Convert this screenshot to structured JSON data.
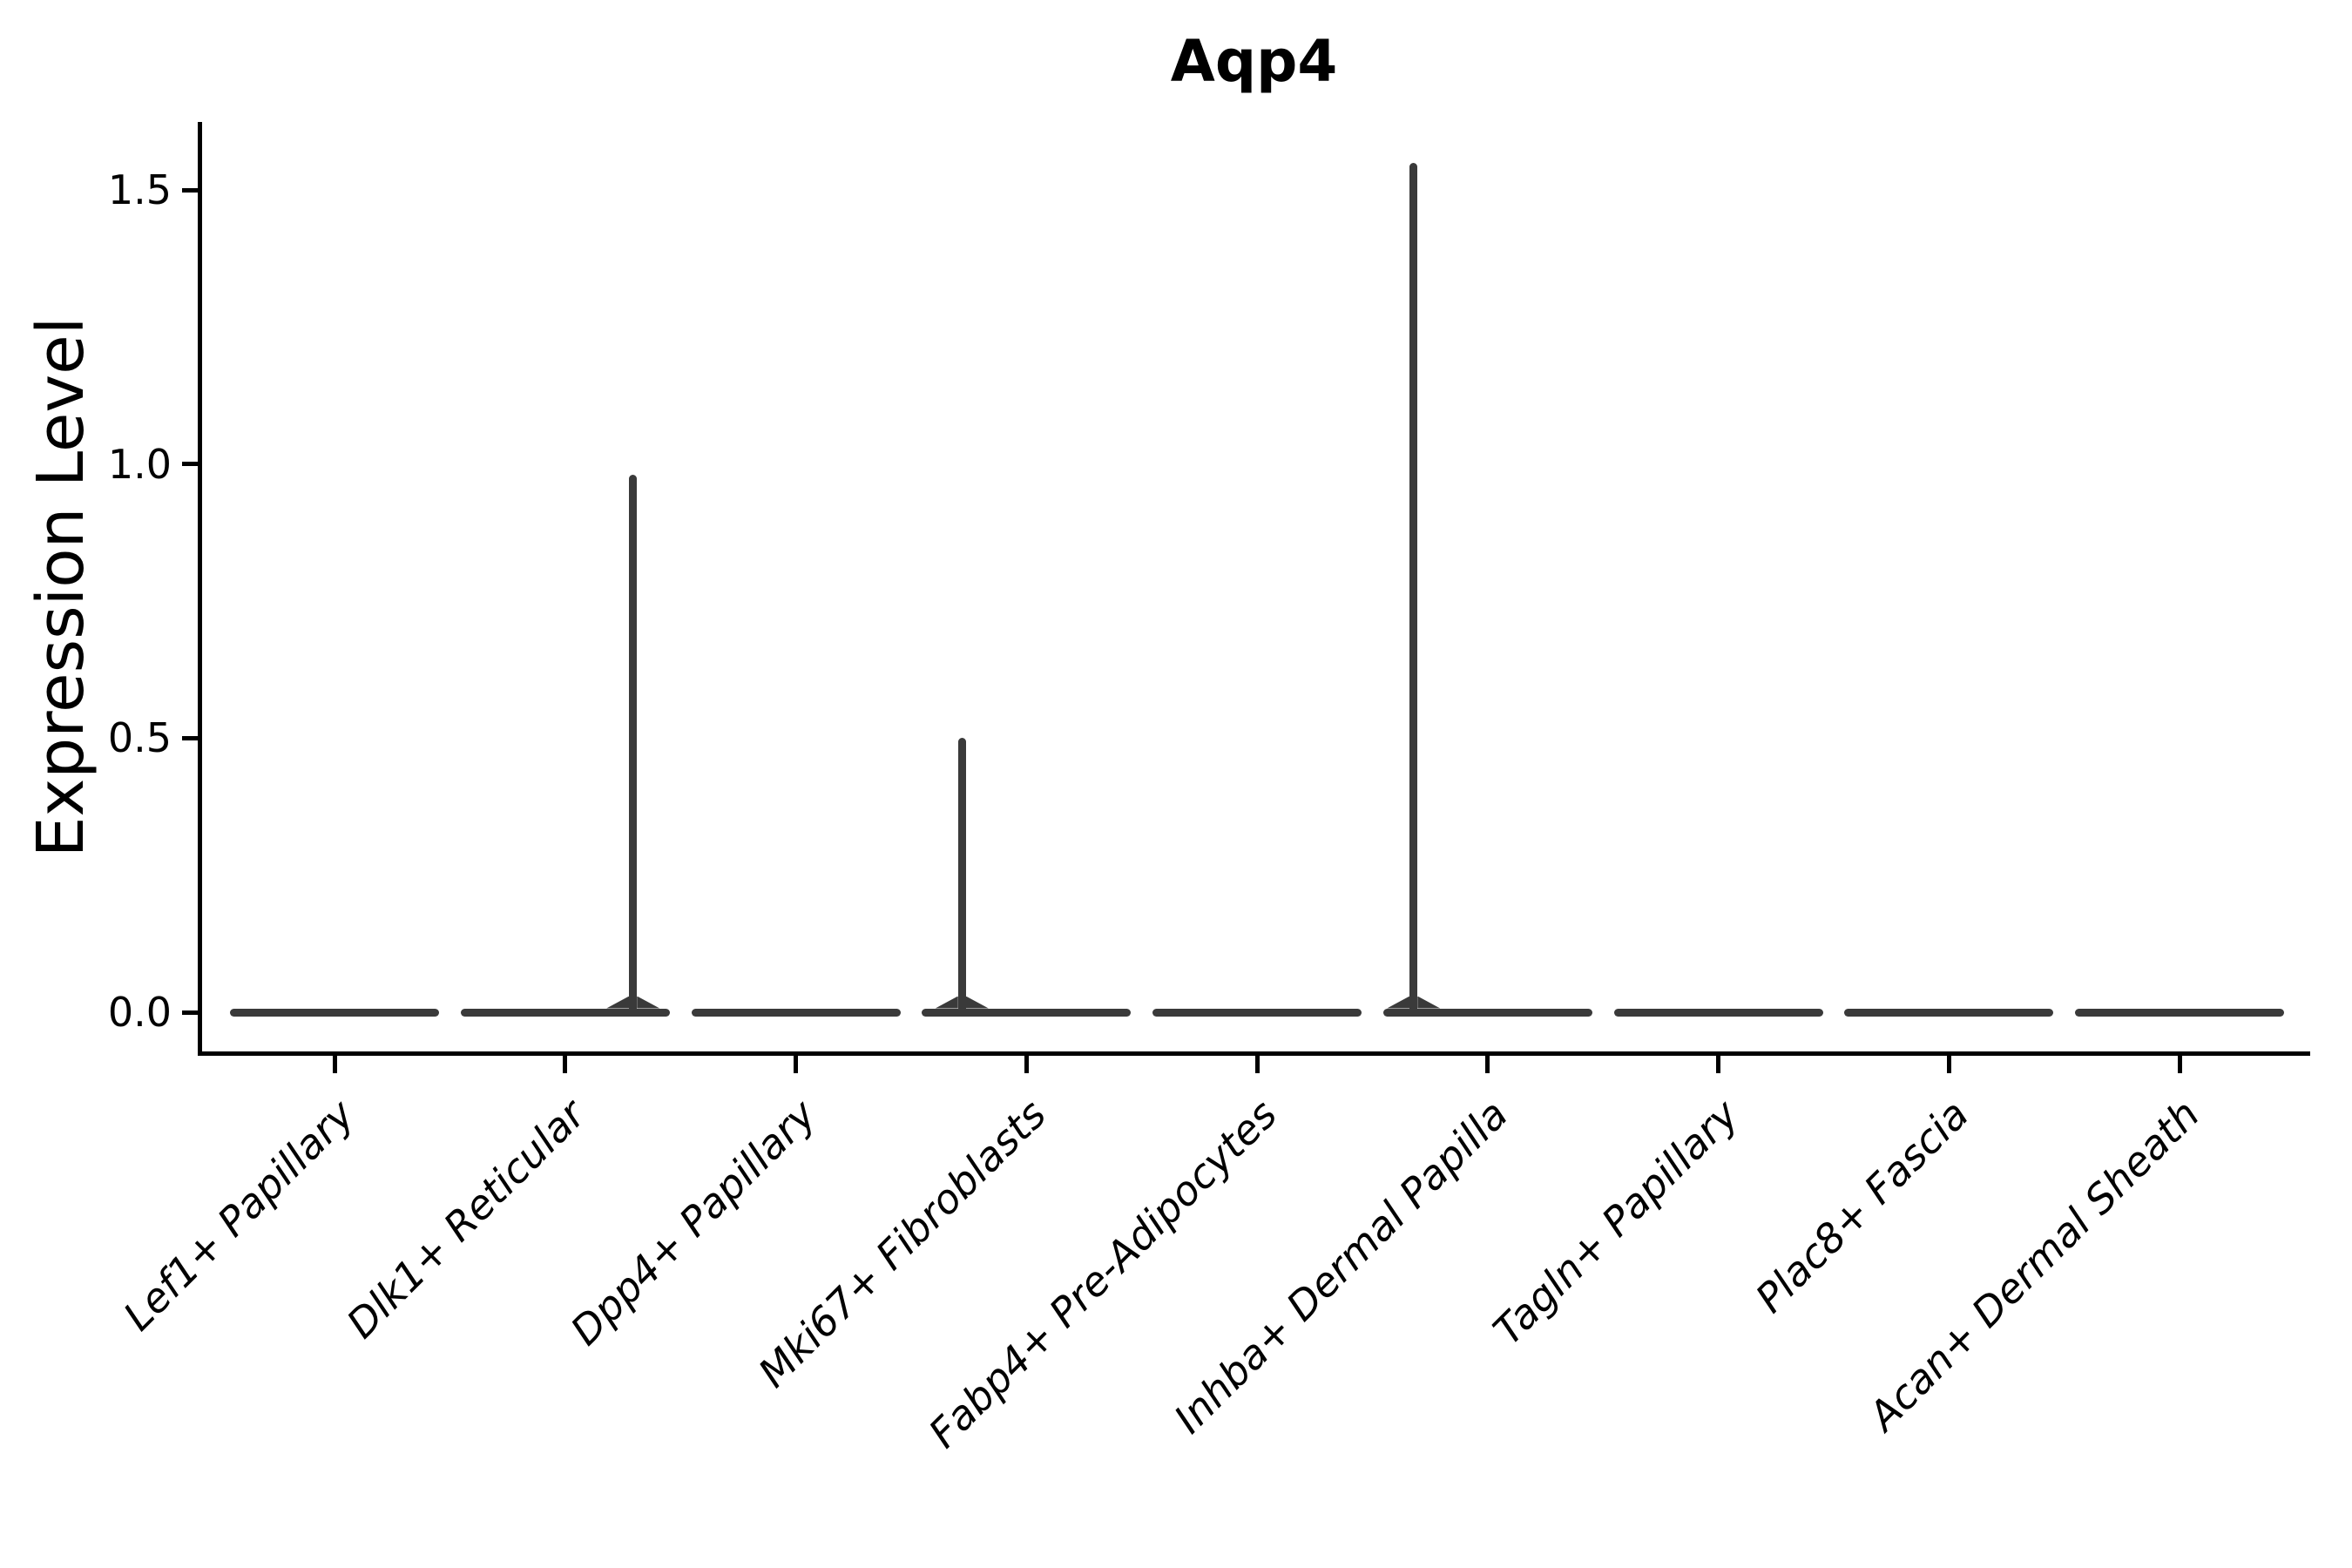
{
  "title": "Aqp4",
  "ylabel": "Expression Level",
  "colors": {
    "violin": "#3A3A3A",
    "axis": "#000000",
    "text": "#000000",
    "background": "#FFFFFF"
  },
  "chart_data": {
    "type": "violin",
    "title": "Aqp4",
    "xlabel": "",
    "ylabel": "Expression Level",
    "ylim": [
      -0.07,
      1.62
    ],
    "yticks": [
      0.0,
      0.5,
      1.0,
      1.5
    ],
    "ytick_labels": [
      "0.0",
      "0.5",
      "1.0",
      "1.5"
    ],
    "grid": false,
    "legend_position": "none",
    "categories": [
      "Lef1+ Papillary",
      "Dlk1+ Reticular",
      "Dpp4+ Papillary",
      "Mki67+ Fibroblasts",
      "Fabp4+ Pre-Adipocytes",
      "Inhba+ Dermal Papilla",
      "Tagln+ Papillary",
      "Plac8+ Fascia",
      "Acan+ Dermal Sheath"
    ],
    "series": [
      {
        "name": "max expression (spike height)",
        "values": [
          0,
          0.98,
          0,
          0.5,
          0,
          1.55,
          0,
          0,
          0
        ]
      }
    ],
    "violin_description": "All violins are collapsed flat at expression 0; thin density spikes rise only for Dlk1+ Reticular (to ~0.98), Mki67+ Fibroblasts (to ~0.5) and Inhba+ Dermal Papilla (to ~1.55)."
  }
}
